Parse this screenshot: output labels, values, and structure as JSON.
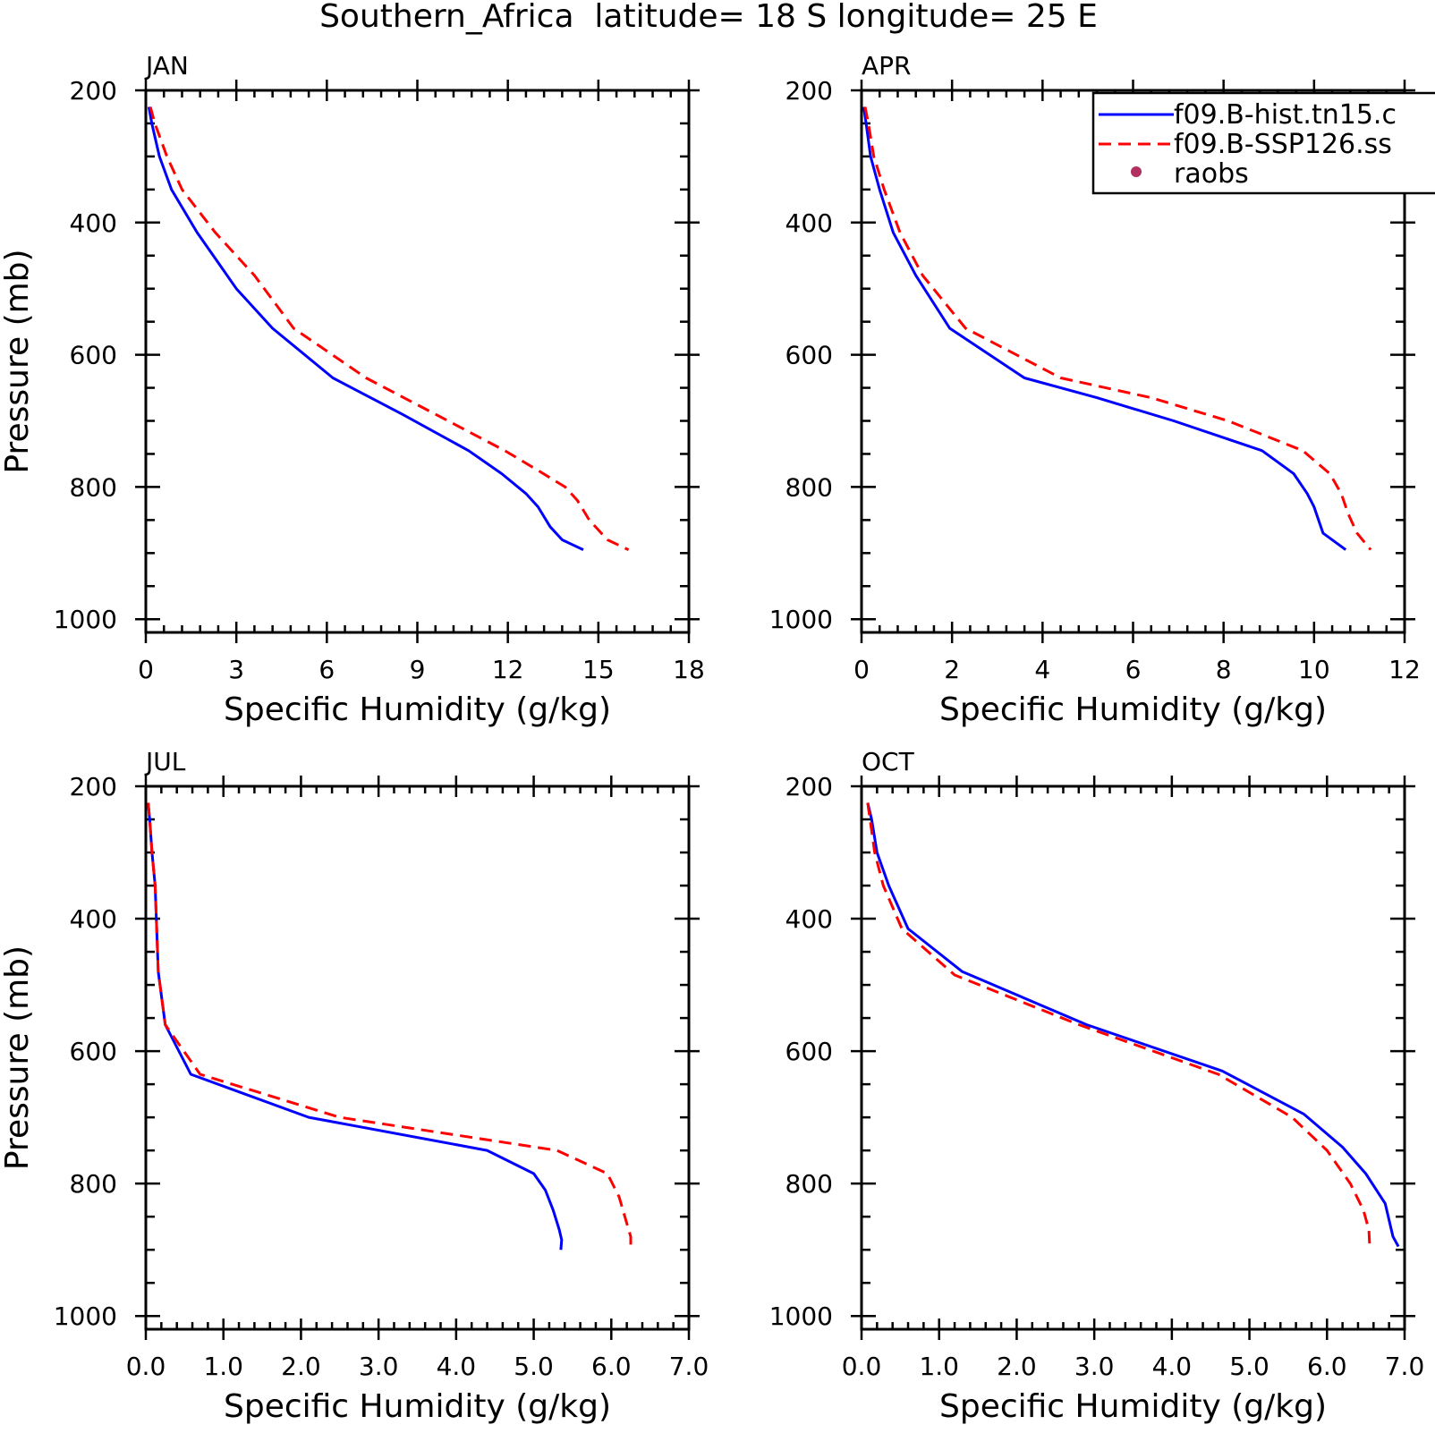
{
  "figure": {
    "title": "Southern_Africa  latitude= 18 S longitude= 25 E"
  },
  "legend": {
    "placement": "top-right of APR panel",
    "entries": [
      {
        "label": "f09.B-hist.tn15.c",
        "style": "solid",
        "color": "#0000ff"
      },
      {
        "label": "f09.B-SSP126.ss",
        "style": "dashed",
        "color": "#ff0000"
      },
      {
        "label": "raobs",
        "style": "dot",
        "color": "#b03060"
      }
    ]
  },
  "chart_data": [
    {
      "type": "line",
      "panel": "JAN",
      "title": "JAN",
      "xlabel": "Specific Humidity (g/kg)",
      "ylabel": "Pressure (mb)",
      "xlim": [
        0,
        18
      ],
      "xticks": [
        0,
        3,
        6,
        9,
        12,
        15,
        18
      ],
      "xticklabels": [
        "0",
        "3",
        "6",
        "9",
        "12",
        "15",
        "18"
      ],
      "ylim": [
        200,
        1020
      ],
      "yinverted": true,
      "yticks": [
        200,
        400,
        600,
        800,
        1000
      ],
      "yticklabels": [
        "200",
        "400",
        "600",
        "800",
        "1000"
      ],
      "series": [
        {
          "name": "f09.B-hist.tn15.c",
          "color": "#0000ff",
          "style": "solid",
          "x": [
            0.1,
            0.2,
            0.45,
            0.85,
            1.7,
            3.0,
            4.2,
            6.2,
            8.5,
            10.7,
            11.8,
            12.6,
            13.0,
            13.4,
            13.8,
            14.5
          ],
          "y": [
            225,
            250,
            300,
            350,
            415,
            500,
            560,
            635,
            690,
            745,
            780,
            810,
            830,
            860,
            880,
            895
          ]
        },
        {
          "name": "f09.B-SSP126.ss",
          "color": "#ff0000",
          "style": "dashed",
          "x": [
            0.15,
            0.3,
            0.7,
            1.2,
            2.3,
            3.6,
            4.9,
            7.3,
            9.6,
            11.9,
            13.0,
            13.9,
            14.3,
            14.7,
            15.3,
            16.0
          ],
          "y": [
            225,
            250,
            300,
            350,
            415,
            480,
            560,
            635,
            690,
            745,
            775,
            800,
            820,
            850,
            880,
            895
          ]
        }
      ]
    },
    {
      "type": "line",
      "panel": "APR",
      "title": "APR",
      "xlabel": "Specific Humidity (g/kg)",
      "ylabel": "",
      "xlim": [
        0,
        12
      ],
      "xticks": [
        0,
        2,
        4,
        6,
        8,
        10,
        12
      ],
      "xticklabels": [
        "0",
        "2",
        "4",
        "6",
        "8",
        "10",
        "12"
      ],
      "ylim": [
        200,
        1020
      ],
      "yinverted": true,
      "yticks": [
        200,
        400,
        600,
        800,
        1000
      ],
      "yticklabels": [
        "200",
        "400",
        "600",
        "800",
        "1000"
      ],
      "series": [
        {
          "name": "f09.B-hist.tn15.c",
          "color": "#0000ff",
          "style": "solid",
          "x": [
            0.05,
            0.1,
            0.2,
            0.4,
            0.7,
            1.2,
            1.95,
            3.6,
            5.2,
            6.9,
            8.85,
            9.55,
            9.85,
            10.0,
            10.2,
            10.7
          ],
          "y": [
            225,
            250,
            300,
            350,
            415,
            480,
            560,
            635,
            665,
            700,
            745,
            780,
            810,
            830,
            870,
            895
          ]
        },
        {
          "name": "f09.B-SSP126.ss",
          "color": "#ff0000",
          "style": "dashed",
          "x": [
            0.08,
            0.15,
            0.27,
            0.5,
            0.85,
            1.35,
            2.3,
            4.4,
            6.4,
            8.1,
            9.75,
            10.35,
            10.6,
            10.75,
            10.95,
            11.25
          ],
          "y": [
            225,
            250,
            300,
            350,
            415,
            480,
            560,
            635,
            665,
            700,
            745,
            780,
            810,
            840,
            870,
            895
          ]
        }
      ]
    },
    {
      "type": "line",
      "panel": "JUL",
      "title": "JUL",
      "xlabel": "Specific Humidity (g/kg)",
      "ylabel": "Pressure (mb)",
      "xlim": [
        0,
        7
      ],
      "xticks": [
        0,
        1,
        2,
        3,
        4,
        5,
        6,
        7
      ],
      "xticklabels": [
        "0.0",
        "1.0",
        "2.0",
        "3.0",
        "4.0",
        "5.0",
        "6.0",
        "7.0"
      ],
      "ylim": [
        200,
        1020
      ],
      "yinverted": true,
      "yticks": [
        200,
        400,
        600,
        800,
        1000
      ],
      "yticklabels": [
        "200",
        "400",
        "600",
        "800",
        "1000"
      ],
      "series": [
        {
          "name": "f09.B-hist.tn15.c",
          "color": "#0000ff",
          "style": "solid",
          "x": [
            0.03,
            0.05,
            0.08,
            0.12,
            0.16,
            0.25,
            0.58,
            2.1,
            4.4,
            5.0,
            5.15,
            5.25,
            5.33,
            5.36,
            5.35
          ],
          "y": [
            225,
            250,
            300,
            350,
            480,
            560,
            635,
            700,
            750,
            785,
            810,
            840,
            870,
            885,
            900
          ]
        },
        {
          "name": "f09.B-SSP126.ss",
          "color": "#ff0000",
          "style": "dashed",
          "x": [
            0.03,
            0.05,
            0.08,
            0.12,
            0.16,
            0.25,
            0.7,
            2.5,
            5.3,
            5.95,
            6.1,
            6.2,
            6.25,
            6.25
          ],
          "y": [
            225,
            250,
            300,
            350,
            480,
            560,
            635,
            700,
            750,
            785,
            820,
            860,
            880,
            900
          ]
        }
      ]
    },
    {
      "type": "line",
      "panel": "OCT",
      "title": "OCT",
      "xlabel": "Specific Humidity (g/kg)",
      "ylabel": "",
      "xlim": [
        0,
        7
      ],
      "xticks": [
        0,
        1,
        2,
        3,
        4,
        5,
        6,
        7
      ],
      "xticklabels": [
        "0.0",
        "1.0",
        "2.0",
        "3.0",
        "4.0",
        "5.0",
        "6.0",
        "7.0"
      ],
      "ylim": [
        200,
        1020
      ],
      "yinverted": true,
      "yticks": [
        200,
        400,
        600,
        800,
        1000
      ],
      "yticklabels": [
        "200",
        "400",
        "600",
        "800",
        "1000"
      ],
      "series": [
        {
          "name": "f09.B-hist.tn15.c",
          "color": "#0000ff",
          "style": "solid",
          "x": [
            0.08,
            0.13,
            0.2,
            0.35,
            0.6,
            1.3,
            2.9,
            4.65,
            5.7,
            6.2,
            6.5,
            6.75,
            6.85,
            6.92
          ],
          "y": [
            225,
            250,
            300,
            350,
            415,
            480,
            560,
            630,
            695,
            745,
            785,
            830,
            880,
            895
          ]
        },
        {
          "name": "f09.B-SSP126.ss",
          "color": "#ff0000",
          "style": "dashed",
          "x": [
            0.08,
            0.11,
            0.17,
            0.28,
            0.52,
            1.2,
            2.8,
            4.6,
            5.55,
            6.0,
            6.3,
            6.47,
            6.54,
            6.55
          ],
          "y": [
            225,
            250,
            300,
            350,
            415,
            485,
            560,
            635,
            700,
            750,
            800,
            840,
            870,
            895
          ]
        }
      ]
    }
  ]
}
